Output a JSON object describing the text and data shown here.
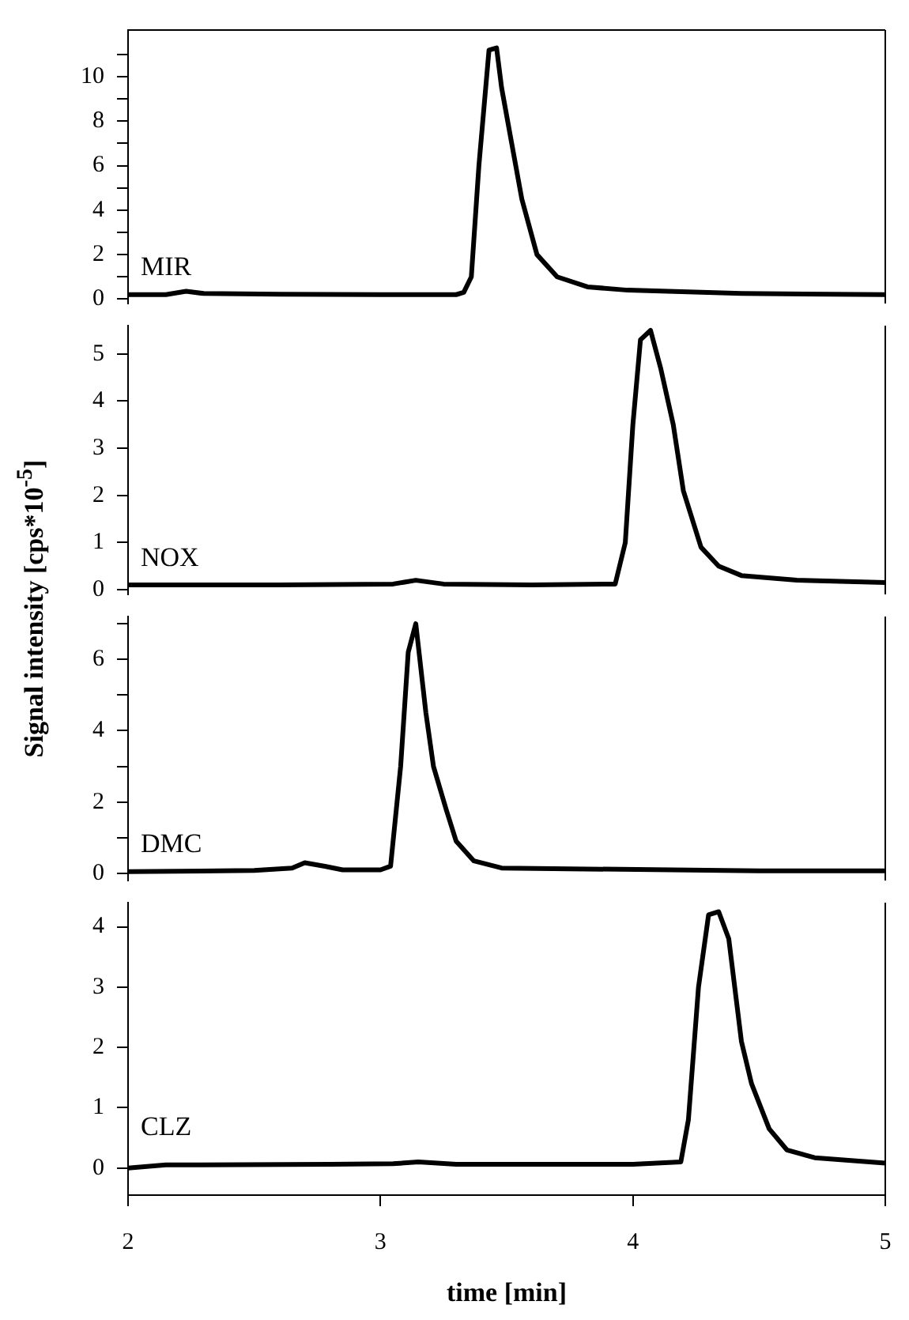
{
  "chart_data": [
    {
      "type": "line",
      "ylabel": "Signal intensity [cps*10$^{-5}$]",
      "xlim": [
        2,
        5
      ],
      "xticks": [
        2,
        3,
        4,
        5
      ],
      "ylim": [
        -0.2,
        12.1
      ],
      "yticks": [
        0,
        {
          "value": 1,
          "label": null
        },
        2,
        {
          "value": 3,
          "label": null
        },
        4,
        {
          "value": 5,
          "label": null
        },
        6,
        {
          "value": 7,
          "label": null
        },
        8,
        {
          "value": 9,
          "label": null
        },
        10,
        {
          "value": 11,
          "label": null
        }
      ],
      "tick_labels": "y",
      "grid": false,
      "marker": "none",
      "series": [
        {
          "name": "MIR",
          "color": "#000000",
          "x": [
            2,
            2.15,
            2.23,
            2.3,
            2.6,
            3.0,
            3.3,
            3.33,
            3.36,
            3.39,
            3.43,
            3.46,
            3.48,
            3.52,
            3.56,
            3.62,
            3.7,
            3.82,
            3.98,
            4.43,
            5
          ],
          "values": [
            0.2,
            0.2,
            0.35,
            0.25,
            0.22,
            0.2,
            0.2,
            0.3,
            1.0,
            6,
            11.2,
            11.3,
            9.5,
            7,
            4.5,
            2,
            1.0,
            0.55,
            0.4,
            0.25,
            0.2
          ]
        }
      ]
    },
    {
      "type": "line",
      "xlim": [
        2,
        5
      ],
      "xticks": [
        2,
        3,
        4,
        5
      ],
      "ylim": [
        -0.1,
        5.6
      ],
      "yticks": [
        0,
        1,
        2,
        3,
        4,
        5
      ],
      "tick_labels": "y",
      "grid": false,
      "marker": "none",
      "series": [
        {
          "name": "NOX",
          "color": "#000000",
          "x": [
            2,
            2.6,
            3.05,
            3.14,
            3.25,
            3.6,
            3.93,
            3.97,
            4.0,
            4.03,
            4.07,
            4.11,
            4.16,
            4.2,
            4.27,
            4.34,
            4.43,
            4.65,
            5
          ],
          "values": [
            0.1,
            0.1,
            0.12,
            0.2,
            0.12,
            0.1,
            0.12,
            1,
            3.5,
            5.3,
            5.5,
            4.7,
            3.5,
            2.1,
            0.9,
            0.5,
            0.3,
            0.2,
            0.15
          ]
        }
      ]
    },
    {
      "type": "line",
      "xlim": [
        2,
        5
      ],
      "xticks": [
        2,
        3,
        4,
        5
      ],
      "ylim": [
        -0.2,
        7.2
      ],
      "yticks": [
        0,
        {
          "value": 1,
          "label": null
        },
        2,
        {
          "value": 3,
          "label": null
        },
        4,
        {
          "value": 5,
          "label": null
        },
        6,
        {
          "value": 7,
          "label": null
        }
      ],
      "tick_labels": "y",
      "grid": false,
      "marker": "none",
      "series": [
        {
          "name": "DMC",
          "color": "#000000",
          "x": [
            2,
            2.5,
            2.65,
            2.7,
            2.78,
            2.85,
            3.0,
            3.04,
            3.08,
            3.11,
            3.14,
            3.18,
            3.21,
            3.26,
            3.3,
            3.37,
            3.48,
            4.5,
            5
          ],
          "values": [
            0.05,
            0.08,
            0.15,
            0.3,
            0.2,
            0.1,
            0.1,
            0.2,
            3,
            6.2,
            7.0,
            4.5,
            3.0,
            1.8,
            0.9,
            0.35,
            0.15,
            0.07,
            0.07
          ]
        }
      ]
    },
    {
      "type": "line",
      "xlabel": "time [min]",
      "xlim": [
        2,
        5
      ],
      "xticks": [
        2,
        3,
        4,
        5
      ],
      "ylim": [
        -0.45,
        4.4
      ],
      "yticks": [
        0,
        1,
        2,
        3,
        4
      ],
      "grid": false,
      "marker": "none",
      "series": [
        {
          "name": "CLZ",
          "color": "#000000",
          "x": [
            2,
            2.15,
            2.8,
            3.05,
            3.15,
            3.3,
            4.0,
            4.19,
            4.22,
            4.26,
            4.3,
            4.34,
            4.38,
            4.43,
            4.47,
            4.54,
            4.61,
            4.72,
            5
          ],
          "values": [
            0,
            0.05,
            0.06,
            0.07,
            0.1,
            0.06,
            0.06,
            0.1,
            0.8,
            3.0,
            4.2,
            4.25,
            3.8,
            2.1,
            1.4,
            0.65,
            0.3,
            0.17,
            0.08
          ]
        }
      ]
    }
  ]
}
